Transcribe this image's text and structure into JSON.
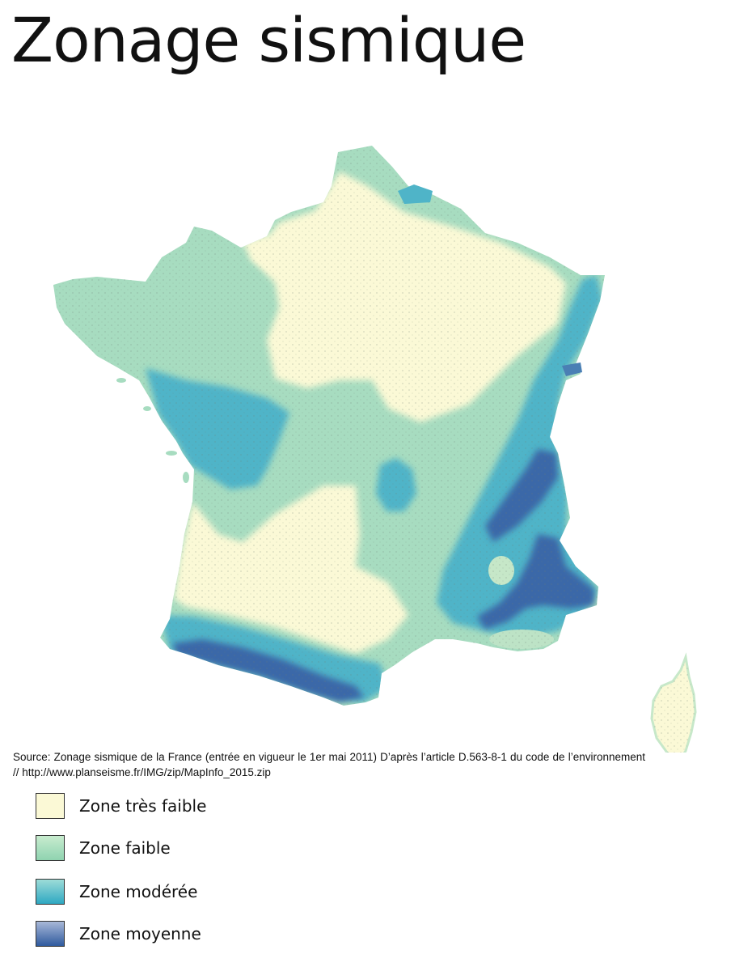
{
  "title": "Zonage sismique",
  "source": "Source: Zonage sismique de la France (entrée en vigueur le 1er mai 2011) D’après l’article D.563-8-1 du code de l’environnement // http://www.planseisme.fr/IMG/zip/MapInfo_2015.zip",
  "legend": [
    {
      "label": "Zone très faible",
      "color": "#fbf9d6"
    },
    {
      "label": "Zone faible",
      "color": "#9cdbb8"
    },
    {
      "label": "Zone modérée",
      "color": "#3cb1c6"
    },
    {
      "label": "Zone moyenne",
      "color": "#3a62a5"
    }
  ],
  "colors": {
    "tres_faible": "#fbf9d6",
    "faible": "#a4dcbf",
    "moderee": "#4eb3c8",
    "moyenne": "#3b67a8"
  }
}
